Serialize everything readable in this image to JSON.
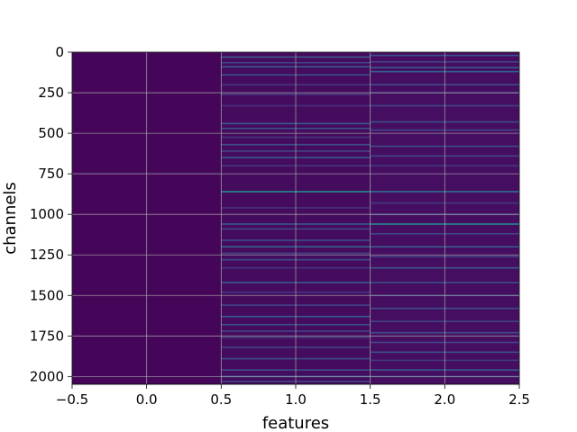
{
  "chart_data": {
    "type": "heatmap",
    "title": "",
    "xlabel": "features",
    "ylabel": "channels",
    "xlim": [
      -0.5,
      2.5
    ],
    "ylim": [
      2048,
      0
    ],
    "y_inverted": true,
    "grid": true,
    "colormap": "viridis",
    "x_ticks": [
      -0.5,
      0.0,
      0.5,
      1.0,
      1.5,
      2.0,
      2.5
    ],
    "x_tick_labels": [
      "−0.5",
      "0.0",
      "0.5",
      "1.0",
      "1.5",
      "2.0",
      "2.5"
    ],
    "y_ticks": [
      0,
      250,
      500,
      750,
      1000,
      1250,
      1500,
      1750,
      2000
    ],
    "y_tick_labels": [
      "0",
      "250",
      "500",
      "750",
      "1000",
      "1250",
      "1500",
      "1750",
      "2000"
    ],
    "columns": [
      {
        "x": 0,
        "base_level": 0.02,
        "highlights": [
          {
            "channel": 745,
            "level": 0.07
          }
        ]
      },
      {
        "x": 1,
        "base_level": 0.04,
        "highlights": [
          {
            "channel": 30,
            "level": 0.35
          },
          {
            "channel": 65,
            "level": 0.25
          },
          {
            "channel": 90,
            "level": 0.35
          },
          {
            "channel": 140,
            "level": 0.3
          },
          {
            "channel": 200,
            "level": 0.2
          },
          {
            "channel": 260,
            "level": 0.2
          },
          {
            "channel": 330,
            "level": 0.18
          },
          {
            "channel": 440,
            "level": 0.35
          },
          {
            "channel": 470,
            "level": 0.3
          },
          {
            "channel": 525,
            "level": 0.2
          },
          {
            "channel": 570,
            "level": 0.3
          },
          {
            "channel": 610,
            "level": 0.25
          },
          {
            "channel": 650,
            "level": 0.35
          },
          {
            "channel": 700,
            "level": 0.2
          },
          {
            "channel": 860,
            "level": 0.6
          },
          {
            "channel": 960,
            "level": 0.18
          },
          {
            "channel": 1060,
            "level": 0.35
          },
          {
            "channel": 1090,
            "level": 0.25
          },
          {
            "channel": 1160,
            "level": 0.3
          },
          {
            "channel": 1200,
            "level": 0.4
          },
          {
            "channel": 1240,
            "level": 0.25
          },
          {
            "channel": 1280,
            "level": 0.3
          },
          {
            "channel": 1330,
            "level": 0.2
          },
          {
            "channel": 1420,
            "level": 0.35
          },
          {
            "channel": 1480,
            "level": 0.2
          },
          {
            "channel": 1560,
            "level": 0.25
          },
          {
            "channel": 1630,
            "level": 0.35
          },
          {
            "channel": 1680,
            "level": 0.3
          },
          {
            "channel": 1720,
            "level": 0.25
          },
          {
            "channel": 1760,
            "level": 0.2
          },
          {
            "channel": 1820,
            "level": 0.25
          },
          {
            "channel": 1890,
            "level": 0.3
          },
          {
            "channel": 1960,
            "level": 0.3
          },
          {
            "channel": 2000,
            "level": 0.4
          },
          {
            "channel": 2030,
            "level": 0.25
          }
        ]
      },
      {
        "x": 2,
        "base_level": 0.05,
        "highlights": [
          {
            "channel": 20,
            "level": 0.3
          },
          {
            "channel": 60,
            "level": 0.25
          },
          {
            "channel": 95,
            "level": 0.35
          },
          {
            "channel": 120,
            "level": 0.4
          },
          {
            "channel": 200,
            "level": 0.3
          },
          {
            "channel": 250,
            "level": 0.2
          },
          {
            "channel": 330,
            "level": 0.25
          },
          {
            "channel": 430,
            "level": 0.3
          },
          {
            "channel": 480,
            "level": 0.25
          },
          {
            "channel": 580,
            "level": 0.3
          },
          {
            "channel": 640,
            "level": 0.25
          },
          {
            "channel": 700,
            "level": 0.2
          },
          {
            "channel": 860,
            "level": 0.45
          },
          {
            "channel": 930,
            "level": 0.2
          },
          {
            "channel": 1000,
            "level": 0.25
          },
          {
            "channel": 1060,
            "level": 0.6
          },
          {
            "channel": 1120,
            "level": 0.25
          },
          {
            "channel": 1200,
            "level": 0.35
          },
          {
            "channel": 1260,
            "level": 0.25
          },
          {
            "channel": 1330,
            "level": 0.35
          },
          {
            "channel": 1420,
            "level": 0.3
          },
          {
            "channel": 1500,
            "level": 0.25
          },
          {
            "channel": 1580,
            "level": 0.3
          },
          {
            "channel": 1660,
            "level": 0.25
          },
          {
            "channel": 1730,
            "level": 0.3
          },
          {
            "channel": 1790,
            "level": 0.25
          },
          {
            "channel": 1850,
            "level": 0.3
          },
          {
            "channel": 1900,
            "level": 0.2
          },
          {
            "channel": 1960,
            "level": 0.35
          },
          {
            "channel": 2000,
            "level": 0.3
          }
        ]
      }
    ]
  }
}
